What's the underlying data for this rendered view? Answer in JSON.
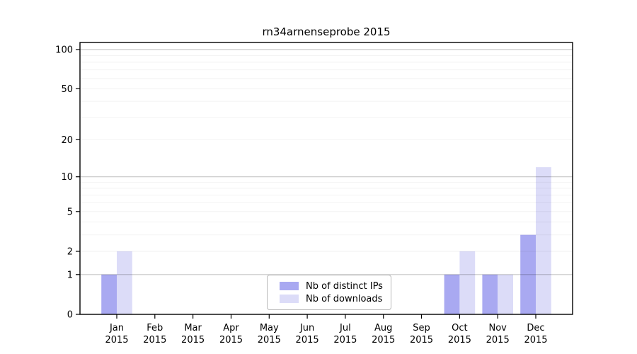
{
  "chart_data": {
    "type": "bar",
    "title": "rn34arnenseprobe 2015",
    "y_scale": "log10(1+x)",
    "categories": [
      "Jan",
      "Feb",
      "Mar",
      "Apr",
      "May",
      "Jun",
      "Jul",
      "Aug",
      "Sep",
      "Oct",
      "Nov",
      "Dec"
    ],
    "x_tick_year": "2015",
    "series": [
      {
        "name": "Nb of distinct IPs",
        "color": "#a9a9f1",
        "values": [
          1,
          0,
          0,
          0,
          0,
          0,
          0,
          0,
          0,
          1,
          1,
          3
        ]
      },
      {
        "name": "Nb of downloads",
        "color": "#dcdcf8",
        "values": [
          2,
          0,
          0,
          0,
          0,
          0,
          0,
          0,
          0,
          2,
          1,
          12
        ]
      }
    ],
    "y_ticks": [
      0,
      1,
      2,
      5,
      10,
      20,
      50,
      100
    ],
    "y_max_tick": 100,
    "grid_major": [
      1,
      10,
      100
    ],
    "grid_minor": [
      2,
      3,
      4,
      5,
      6,
      7,
      8,
      9,
      20,
      30,
      40,
      50,
      60,
      70,
      80,
      90
    ],
    "legend_position": "lower center",
    "colors": {
      "axis": "#000000",
      "tick_text": "#000000",
      "grid_major_rgba": "rgba(0,0,0,0.22)",
      "grid_minor_rgba": "rgba(0,0,0,0.05)",
      "background": "#ffffff"
    }
  }
}
